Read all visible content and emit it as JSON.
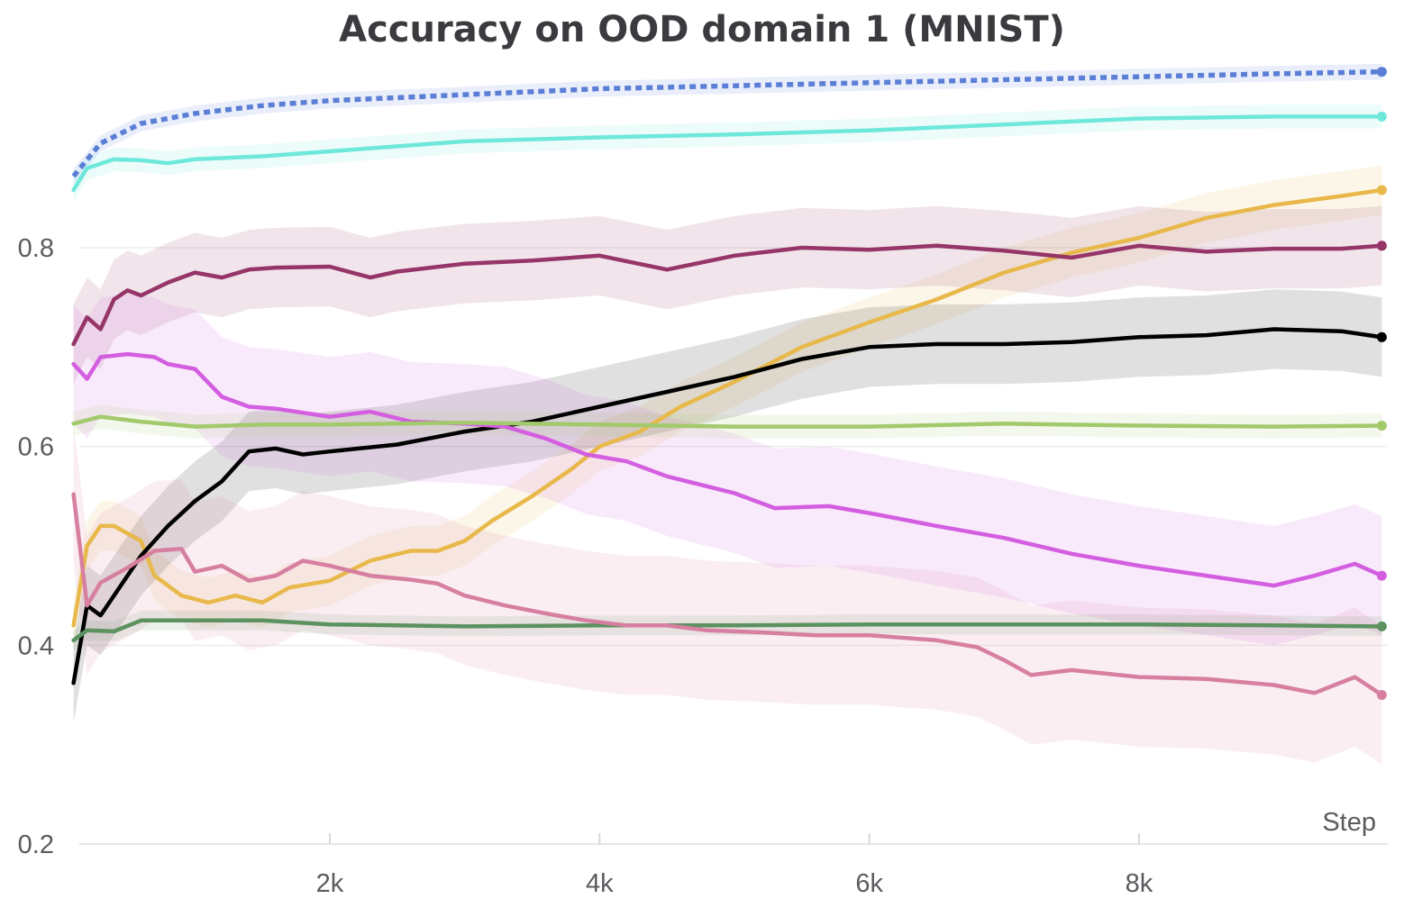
{
  "chart_data": {
    "type": "line",
    "title": "Accuracy on OOD domain 1 (MNIST)",
    "xlabel": "Step",
    "ylabel": "",
    "xlim": [
      100,
      9800
    ],
    "ylim": [
      0.2,
      0.98
    ],
    "x_ticks": [
      {
        "value": 2000,
        "label": "2k"
      },
      {
        "value": 4000,
        "label": "4k"
      },
      {
        "value": 6000,
        "label": "6k"
      },
      {
        "value": 8000,
        "label": "8k"
      }
    ],
    "y_ticks": [
      {
        "value": 0.2,
        "label": "0.2"
      },
      {
        "value": 0.4,
        "label": "0.4"
      },
      {
        "value": 0.6,
        "label": "0.6"
      },
      {
        "value": 0.8,
        "label": "0.8"
      }
    ],
    "grid": true,
    "legend": "none",
    "series": [
      {
        "color": "#5b7fd6",
        "dash": "dotted",
        "band": 0.008,
        "points": [
          [
            100,
            0.872
          ],
          [
            300,
            0.905
          ],
          [
            600,
            0.925
          ],
          [
            1000,
            0.935
          ],
          [
            1500,
            0.943
          ],
          [
            2000,
            0.948
          ],
          [
            3000,
            0.954
          ],
          [
            4000,
            0.96
          ],
          [
            5000,
            0.963
          ],
          [
            6000,
            0.966
          ],
          [
            7000,
            0.969
          ],
          [
            8000,
            0.972
          ],
          [
            9000,
            0.975
          ],
          [
            9800,
            0.977
          ]
        ]
      },
      {
        "color": "#6fe8dc",
        "dash": "solid",
        "band": 0.012,
        "points": [
          [
            100,
            0.858
          ],
          [
            200,
            0.88
          ],
          [
            400,
            0.889
          ],
          [
            600,
            0.888
          ],
          [
            800,
            0.885
          ],
          [
            1000,
            0.889
          ],
          [
            1500,
            0.892
          ],
          [
            2000,
            0.897
          ],
          [
            3000,
            0.907
          ],
          [
            4000,
            0.911
          ],
          [
            5000,
            0.914
          ],
          [
            6000,
            0.918
          ],
          [
            7000,
            0.924
          ],
          [
            8000,
            0.93
          ],
          [
            9000,
            0.932
          ],
          [
            9800,
            0.932
          ]
        ]
      },
      {
        "color": "#e8b84a",
        "dash": "solid",
        "band": 0.025,
        "points": [
          [
            100,
            0.42
          ],
          [
            200,
            0.5
          ],
          [
            300,
            0.52
          ],
          [
            400,
            0.52
          ],
          [
            600,
            0.505
          ],
          [
            700,
            0.47
          ],
          [
            900,
            0.45
          ],
          [
            1100,
            0.443
          ],
          [
            1300,
            0.45
          ],
          [
            1500,
            0.443
          ],
          [
            1700,
            0.458
          ],
          [
            2000,
            0.465
          ],
          [
            2300,
            0.485
          ],
          [
            2600,
            0.495
          ],
          [
            2800,
            0.495
          ],
          [
            3000,
            0.505
          ],
          [
            3200,
            0.525
          ],
          [
            3500,
            0.55
          ],
          [
            3800,
            0.578
          ],
          [
            4000,
            0.6
          ],
          [
            4300,
            0.615
          ],
          [
            4600,
            0.64
          ],
          [
            5000,
            0.665
          ],
          [
            5500,
            0.7
          ],
          [
            6000,
            0.725
          ],
          [
            6500,
            0.748
          ],
          [
            7000,
            0.775
          ],
          [
            7500,
            0.795
          ],
          [
            8000,
            0.81
          ],
          [
            8500,
            0.83
          ],
          [
            9000,
            0.843
          ],
          [
            9500,
            0.852
          ],
          [
            9800,
            0.858
          ]
        ]
      },
      {
        "color": "#963568",
        "dash": "solid",
        "band": 0.04,
        "points": [
          [
            100,
            0.703
          ],
          [
            200,
            0.73
          ],
          [
            300,
            0.718
          ],
          [
            400,
            0.748
          ],
          [
            500,
            0.757
          ],
          [
            600,
            0.752
          ],
          [
            800,
            0.765
          ],
          [
            1000,
            0.775
          ],
          [
            1200,
            0.77
          ],
          [
            1400,
            0.778
          ],
          [
            1600,
            0.78
          ],
          [
            2000,
            0.781
          ],
          [
            2300,
            0.77
          ],
          [
            2500,
            0.776
          ],
          [
            3000,
            0.784
          ],
          [
            3500,
            0.787
          ],
          [
            4000,
            0.792
          ],
          [
            4500,
            0.778
          ],
          [
            5000,
            0.792
          ],
          [
            5500,
            0.8
          ],
          [
            6000,
            0.798
          ],
          [
            6500,
            0.802
          ],
          [
            7000,
            0.797
          ],
          [
            7500,
            0.79
          ],
          [
            8000,
            0.802
          ],
          [
            8500,
            0.796
          ],
          [
            9000,
            0.799
          ],
          [
            9500,
            0.799
          ],
          [
            9800,
            0.802
          ]
        ]
      },
      {
        "color": "#000000",
        "dash": "solid",
        "band": 0.04,
        "points": [
          [
            100,
            0.362
          ],
          [
            200,
            0.44
          ],
          [
            300,
            0.43
          ],
          [
            400,
            0.45
          ],
          [
            600,
            0.49
          ],
          [
            800,
            0.52
          ],
          [
            1000,
            0.545
          ],
          [
            1200,
            0.565
          ],
          [
            1400,
            0.595
          ],
          [
            1600,
            0.598
          ],
          [
            1800,
            0.592
          ],
          [
            2000,
            0.595
          ],
          [
            2500,
            0.602
          ],
          [
            3000,
            0.615
          ],
          [
            3500,
            0.625
          ],
          [
            4000,
            0.64
          ],
          [
            4500,
            0.655
          ],
          [
            5000,
            0.67
          ],
          [
            5500,
            0.688
          ],
          [
            6000,
            0.7
          ],
          [
            6500,
            0.703
          ],
          [
            7000,
            0.703
          ],
          [
            7500,
            0.705
          ],
          [
            8000,
            0.71
          ],
          [
            8500,
            0.712
          ],
          [
            9000,
            0.718
          ],
          [
            9500,
            0.716
          ],
          [
            9800,
            0.71
          ]
        ]
      },
      {
        "color": "#d35ee0",
        "dash": "solid",
        "band": 0.06,
        "points": [
          [
            100,
            0.683
          ],
          [
            200,
            0.668
          ],
          [
            300,
            0.69
          ],
          [
            500,
            0.693
          ],
          [
            700,
            0.69
          ],
          [
            800,
            0.683
          ],
          [
            1000,
            0.678
          ],
          [
            1200,
            0.65
          ],
          [
            1400,
            0.64
          ],
          [
            1600,
            0.638
          ],
          [
            2000,
            0.63
          ],
          [
            2300,
            0.635
          ],
          [
            2600,
            0.625
          ],
          [
            3000,
            0.623
          ],
          [
            3300,
            0.62
          ],
          [
            3600,
            0.608
          ],
          [
            3900,
            0.592
          ],
          [
            4200,
            0.585
          ],
          [
            4500,
            0.57
          ],
          [
            5000,
            0.553
          ],
          [
            5300,
            0.538
          ],
          [
            5700,
            0.54
          ],
          [
            6000,
            0.533
          ],
          [
            6500,
            0.52
          ],
          [
            7000,
            0.508
          ],
          [
            7500,
            0.492
          ],
          [
            8000,
            0.48
          ],
          [
            8500,
            0.47
          ],
          [
            9000,
            0.46
          ],
          [
            9300,
            0.47
          ],
          [
            9600,
            0.482
          ],
          [
            9800,
            0.47
          ]
        ]
      },
      {
        "color": "#a2c96c",
        "dash": "solid",
        "band": 0.012,
        "points": [
          [
            100,
            0.623
          ],
          [
            300,
            0.63
          ],
          [
            600,
            0.625
          ],
          [
            1000,
            0.62
          ],
          [
            1500,
            0.622
          ],
          [
            2000,
            0.622
          ],
          [
            3000,
            0.624
          ],
          [
            4000,
            0.622
          ],
          [
            5000,
            0.62
          ],
          [
            6000,
            0.62
          ],
          [
            7000,
            0.623
          ],
          [
            8000,
            0.621
          ],
          [
            9000,
            0.62
          ],
          [
            9800,
            0.621
          ]
        ]
      },
      {
        "color": "#5b9260",
        "dash": "solid",
        "band": 0.01,
        "points": [
          [
            100,
            0.405
          ],
          [
            200,
            0.415
          ],
          [
            400,
            0.414
          ],
          [
            600,
            0.425
          ],
          [
            1000,
            0.425
          ],
          [
            1500,
            0.425
          ],
          [
            2000,
            0.421
          ],
          [
            3000,
            0.419
          ],
          [
            4000,
            0.42
          ],
          [
            5000,
            0.42
          ],
          [
            6000,
            0.421
          ],
          [
            7000,
            0.421
          ],
          [
            8000,
            0.421
          ],
          [
            9000,
            0.42
          ],
          [
            9800,
            0.419
          ]
        ]
      },
      {
        "color": "#d77fa0",
        "dash": "solid",
        "band": 0.07,
        "points": [
          [
            100,
            0.552
          ],
          [
            200,
            0.44
          ],
          [
            300,
            0.463
          ],
          [
            500,
            0.478
          ],
          [
            700,
            0.495
          ],
          [
            900,
            0.497
          ],
          [
            1000,
            0.474
          ],
          [
            1200,
            0.48
          ],
          [
            1400,
            0.465
          ],
          [
            1600,
            0.47
          ],
          [
            1800,
            0.485
          ],
          [
            2000,
            0.48
          ],
          [
            2300,
            0.47
          ],
          [
            2600,
            0.466
          ],
          [
            2800,
            0.462
          ],
          [
            3000,
            0.45
          ],
          [
            3300,
            0.44
          ],
          [
            3600,
            0.432
          ],
          [
            3900,
            0.425
          ],
          [
            4200,
            0.42
          ],
          [
            4500,
            0.42
          ],
          [
            4800,
            0.415
          ],
          [
            5200,
            0.413
          ],
          [
            5600,
            0.41
          ],
          [
            6000,
            0.41
          ],
          [
            6500,
            0.405
          ],
          [
            6800,
            0.398
          ],
          [
            7000,
            0.385
          ],
          [
            7200,
            0.37
          ],
          [
            7500,
            0.375
          ],
          [
            8000,
            0.368
          ],
          [
            8500,
            0.366
          ],
          [
            9000,
            0.36
          ],
          [
            9300,
            0.352
          ],
          [
            9600,
            0.368
          ],
          [
            9800,
            0.35
          ]
        ]
      }
    ]
  }
}
